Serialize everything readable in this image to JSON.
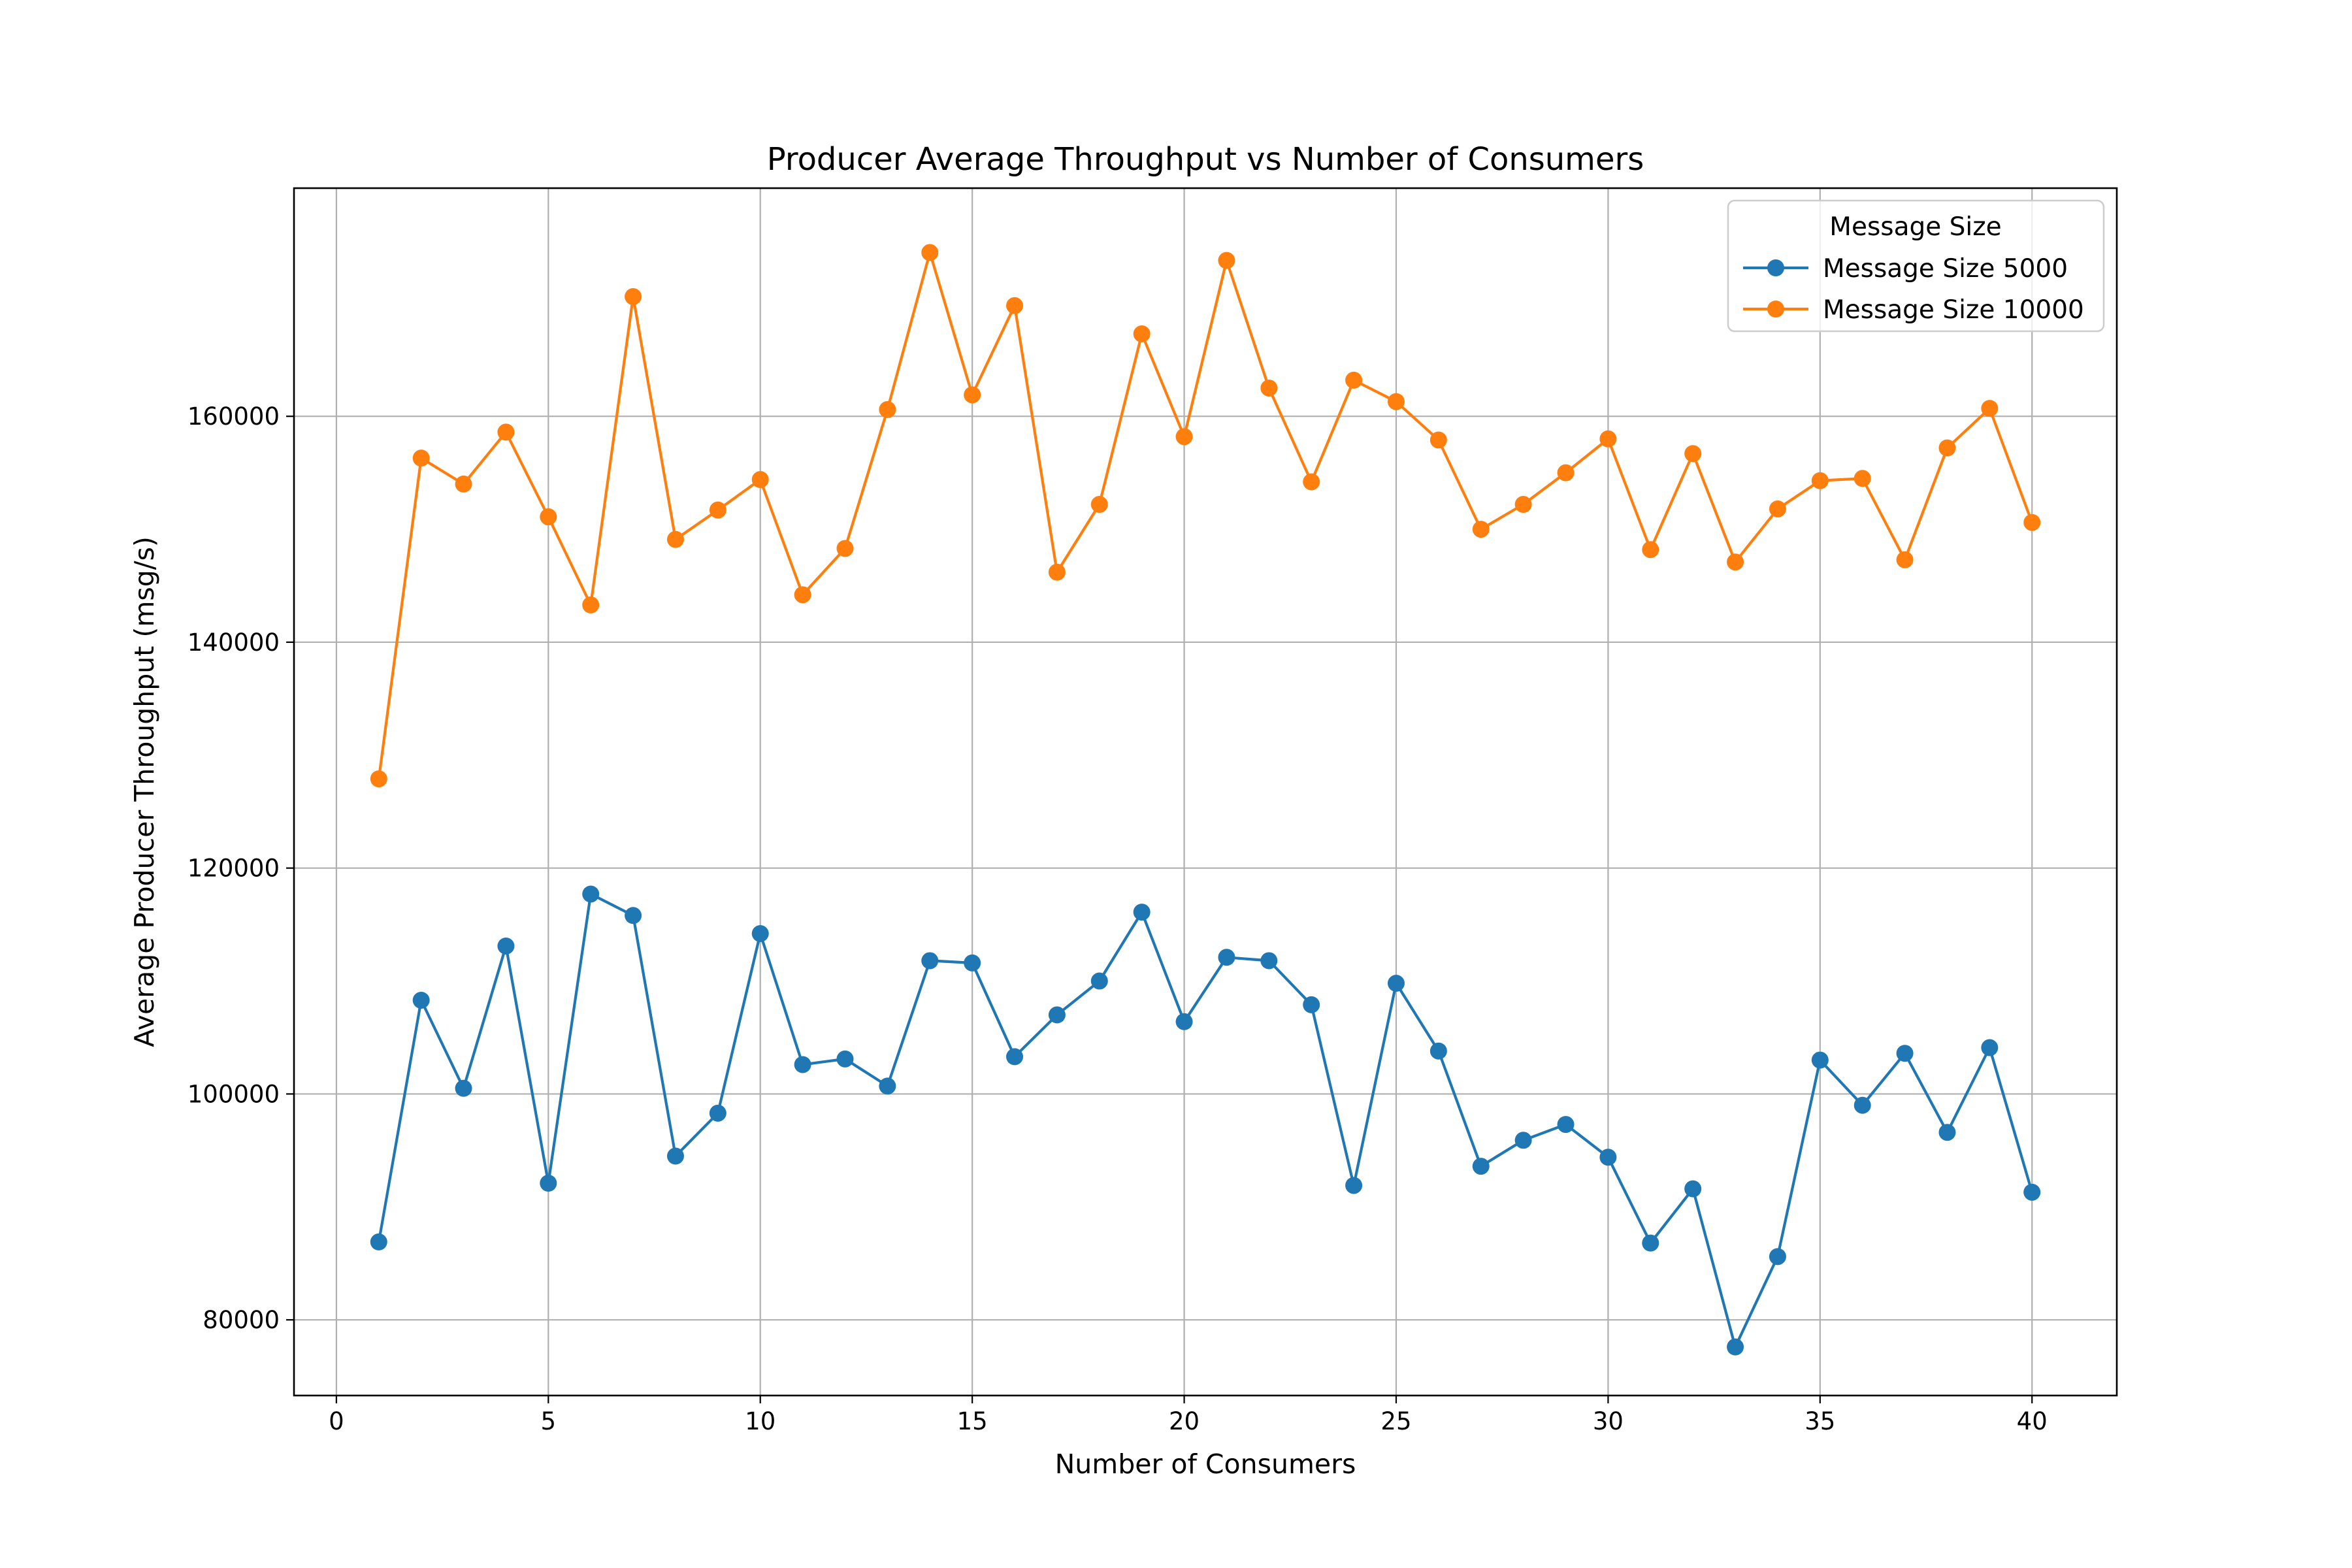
{
  "chart_data": {
    "type": "line",
    "title": "Producer Average Throughput vs Number of Consumers",
    "xlabel": "Number of Consumers",
    "ylabel": "Average Producer Throughput (msg/s)",
    "xlim": [
      -1,
      42
    ],
    "ylim": [
      73300,
      180200
    ],
    "x_ticks": [
      0,
      5,
      10,
      15,
      20,
      25,
      30,
      35,
      40
    ],
    "y_ticks": [
      80000,
      100000,
      120000,
      140000,
      160000
    ],
    "grid": true,
    "legend": {
      "title": "Message Size",
      "position": "top-right"
    },
    "x": [
      1,
      2,
      3,
      4,
      5,
      6,
      7,
      8,
      9,
      10,
      11,
      12,
      13,
      14,
      15,
      16,
      17,
      18,
      19,
      20,
      21,
      22,
      23,
      24,
      25,
      26,
      27,
      28,
      29,
      30,
      31,
      32,
      33,
      34,
      35,
      36,
      37,
      38,
      39,
      40
    ],
    "series": [
      {
        "name": "Message Size 5000",
        "color": "#1f77b4",
        "values": [
          86900,
          108300,
          100500,
          113100,
          92100,
          117700,
          115800,
          94500,
          98300,
          114200,
          102600,
          103100,
          100700,
          111800,
          111600,
          103300,
          107000,
          110000,
          116100,
          106400,
          112100,
          111800,
          107900,
          91900,
          109800,
          103800,
          93600,
          95900,
          97300,
          94400,
          86800,
          91600,
          77600,
          85600,
          103000,
          99000,
          103600,
          96600,
          104100,
          91300
        ]
      },
      {
        "name": "Message Size 10000",
        "color": "#ff7f0e",
        "values": [
          127900,
          156300,
          154000,
          158600,
          151100,
          143300,
          170600,
          149100,
          151700,
          154400,
          144200,
          148300,
          160600,
          174500,
          161900,
          169800,
          146200,
          152200,
          167300,
          158200,
          173800,
          162500,
          154200,
          163200,
          161300,
          157900,
          150000,
          152200,
          155000,
          158000,
          148200,
          156700,
          147100,
          151800,
          154300,
          154500,
          147300,
          157200,
          160700,
          150600
        ]
      }
    ]
  }
}
